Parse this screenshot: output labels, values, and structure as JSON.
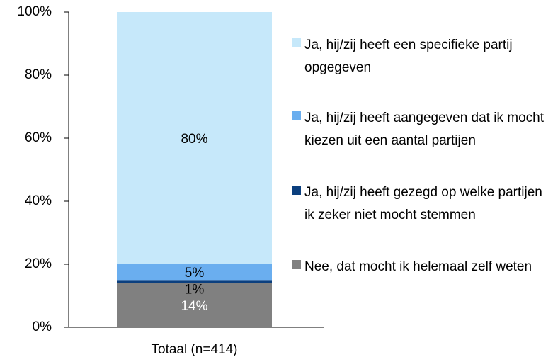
{
  "chart_data": {
    "type": "stacked_bar",
    "categories": [
      "Totaal (n=414)"
    ],
    "series": [
      {
        "name": "Nee, dat mocht ik helemaal zelf weten",
        "color": "#808080",
        "label_color": "#ffffff",
        "values": [
          14
        ],
        "value_labels": [
          "14%"
        ]
      },
      {
        "name": "Ja, hij/zij heeft gezegd op welke partijen ik zeker niet mocht stemmen",
        "color": "#0b3f7e",
        "label_color": "#000000",
        "values": [
          1
        ],
        "value_labels": [
          "1%"
        ]
      },
      {
        "name": "Ja, hij/zij heeft aangegeven dat ik mocht kiezen uit een aantal partijen",
        "color": "#6aaeef",
        "label_color": "#000000",
        "values": [
          5
        ],
        "value_labels": [
          "5%"
        ]
      },
      {
        "name": "Ja, hij/zij heeft een specifieke partij opgegeven",
        "color": "#c6e8fa",
        "label_color": "#000000",
        "values": [
          80
        ],
        "value_labels": [
          "80%"
        ]
      }
    ],
    "ylim": [
      0,
      100
    ],
    "yticks": [
      {
        "value": 0,
        "label": "0%"
      },
      {
        "value": 20,
        "label": "20%"
      },
      {
        "value": 40,
        "label": "40%"
      },
      {
        "value": 60,
        "label": "60%"
      },
      {
        "value": 80,
        "label": "80%"
      },
      {
        "value": 100,
        "label": "100%"
      }
    ],
    "legend": "right"
  }
}
